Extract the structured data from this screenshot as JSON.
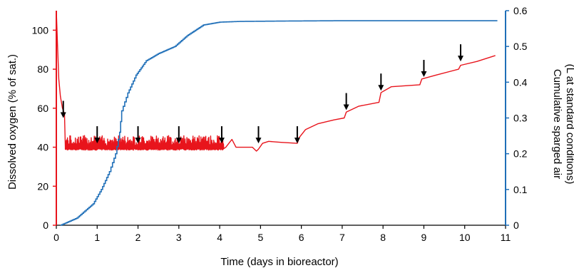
{
  "chart_data": {
    "type": "line",
    "xlabel": "Time (days in bioreactor)",
    "ylabel_left": "Dissolved oxygen (% of sat.)",
    "ylabel_right_line1": "Cumulative sparged air",
    "ylabel_right_line2": "(L at standard conditions)",
    "xlim": [
      0,
      11
    ],
    "ylim_left": [
      0,
      110
    ],
    "ylim_right": [
      0,
      0.6
    ],
    "x_ticks": [
      "0",
      "1",
      "2",
      "3",
      "4",
      "5",
      "6",
      "7",
      "8",
      "9",
      "10",
      "11"
    ],
    "y_left_ticks": [
      "0",
      "20",
      "40",
      "60",
      "80",
      "100"
    ],
    "y_right_ticks": [
      "0",
      "0.1",
      "0.2",
      "0.3",
      "0.4",
      "0.5",
      "0.6"
    ],
    "colors": {
      "dissolved_oxygen": "#e8141c",
      "sparged_air": "#1f6fb8",
      "axis_left": "#e8141c",
      "axis_right": "#1f6fb8",
      "arrow": "#000000"
    },
    "grid": false,
    "legend": "none",
    "series": [
      {
        "axis": "left",
        "color": "#e8141c",
        "controlled_band": {
          "x_range": [
            0.22,
            4.1
          ],
          "low": 38.5,
          "high": 46
        },
        "points": [
          [
            0,
            110
          ],
          [
            0.03,
            92
          ],
          [
            0.06,
            75
          ],
          [
            0.1,
            66
          ],
          [
            0.15,
            60
          ],
          [
            0.2,
            57
          ],
          [
            0.22,
            40
          ],
          [
            0.25,
            38.5
          ],
          [
            0.5,
            39
          ],
          [
            4.05,
            39
          ],
          [
            4.15,
            40
          ],
          [
            4.3,
            44
          ],
          [
            4.4,
            40
          ],
          [
            4.8,
            40
          ],
          [
            4.9,
            38
          ],
          [
            4.95,
            39
          ],
          [
            5.05,
            42
          ],
          [
            5.2,
            43
          ],
          [
            5.5,
            42.5
          ],
          [
            5.9,
            42
          ],
          [
            5.95,
            45
          ],
          [
            6.1,
            49
          ],
          [
            6.4,
            52
          ],
          [
            6.8,
            54
          ],
          [
            7.05,
            55
          ],
          [
            7.1,
            58
          ],
          [
            7.4,
            61
          ],
          [
            7.9,
            63
          ],
          [
            7.95,
            68
          ],
          [
            8.2,
            71
          ],
          [
            8.9,
            72
          ],
          [
            8.95,
            75
          ],
          [
            9.3,
            77
          ],
          [
            9.85,
            80
          ],
          [
            9.9,
            82
          ],
          [
            10.3,
            84
          ],
          [
            10.6,
            86
          ],
          [
            10.75,
            87
          ]
        ]
      },
      {
        "axis": "right",
        "color": "#1f6fb8",
        "points": [
          [
            0.1,
            0
          ],
          [
            0.2,
            0.005
          ],
          [
            0.5,
            0.02
          ],
          [
            0.7,
            0.04
          ],
          [
            0.9,
            0.06
          ],
          [
            1.1,
            0.1
          ],
          [
            1.3,
            0.15
          ],
          [
            1.45,
            0.2
          ],
          [
            1.55,
            0.26
          ],
          [
            1.6,
            0.32
          ],
          [
            1.75,
            0.37
          ],
          [
            1.95,
            0.42
          ],
          [
            2.2,
            0.46
          ],
          [
            2.5,
            0.48
          ],
          [
            2.9,
            0.5
          ],
          [
            3.2,
            0.53
          ],
          [
            3.6,
            0.56
          ],
          [
            4.0,
            0.568
          ],
          [
            4.5,
            0.57
          ],
          [
            5.5,
            0.571
          ],
          [
            7,
            0.572
          ],
          [
            9,
            0.572
          ],
          [
            10.8,
            0.572
          ]
        ]
      }
    ],
    "arrow_x": [
      0.17,
      1.0,
      2.0,
      3.0,
      4.05,
      4.95,
      5.9,
      7.1,
      7.95,
      9.0,
      9.9
    ],
    "arrow_y_left": [
      55,
      42,
      42,
      42,
      42,
      42,
      42,
      59,
      69,
      76,
      84
    ]
  }
}
